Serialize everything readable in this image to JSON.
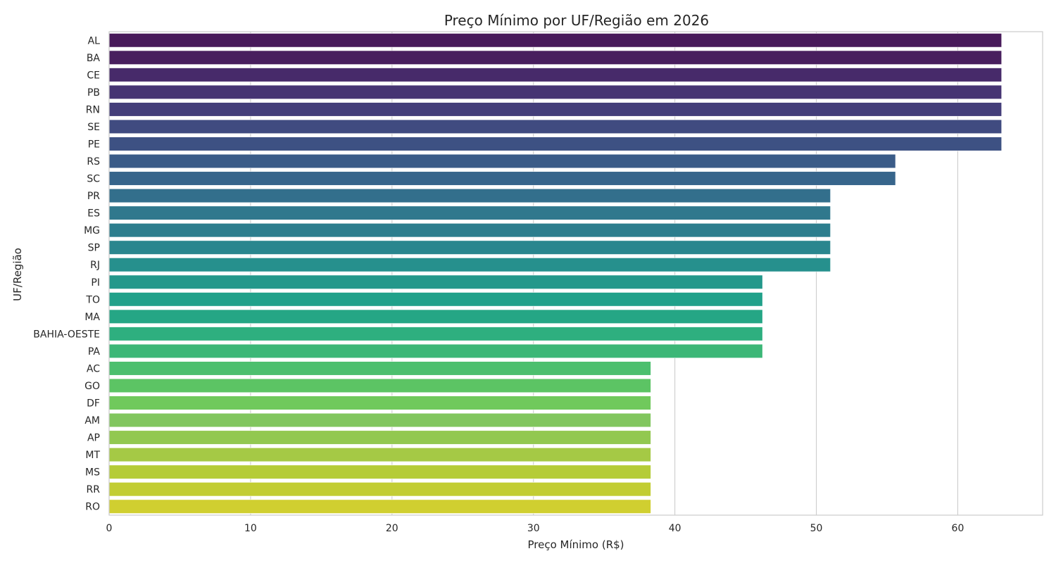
{
  "chart_data": {
    "type": "bar",
    "orientation": "horizontal",
    "title": "Preço Mínimo por UF/Região em 2026",
    "xlabel": "Preço Mínimo (R$)",
    "ylabel": "UF/Região",
    "xlim": [
      0,
      66
    ],
    "xticks": [
      "0",
      "10",
      "20",
      "30",
      "40",
      "50",
      "60"
    ],
    "grid": true,
    "categories": [
      "AL",
      "BA",
      "CE",
      "PB",
      "RN",
      "SE",
      "PE",
      "RS",
      "SC",
      "PR",
      "ES",
      "MG",
      "SP",
      "RJ",
      "PI",
      "TO",
      "MA",
      "BAHIA-OESTE",
      "PA",
      "AC",
      "GO",
      "DF",
      "AM",
      "AP",
      "MT",
      "MS",
      "RR",
      "RO"
    ],
    "values": [
      63.1,
      63.1,
      63.1,
      63.1,
      63.1,
      63.1,
      63.1,
      55.6,
      55.6,
      51.0,
      51.0,
      51.0,
      51.0,
      51.0,
      46.2,
      46.2,
      46.2,
      46.2,
      46.2,
      38.3,
      38.3,
      38.3,
      38.3,
      38.3,
      38.3,
      38.3,
      38.3,
      38.3
    ],
    "colors": [
      "#481a5a",
      "#481f5e",
      "#472a6a",
      "#463473",
      "#443e7a",
      "#404b80",
      "#3d5183",
      "#3b5c88",
      "#37658b",
      "#336f8c",
      "#30788d",
      "#2d7e8e",
      "#2a868e",
      "#26908d",
      "#24988b",
      "#21a18a",
      "#25a685",
      "#2eaf7f",
      "#3cb777",
      "#4cbf6e",
      "#5cc464",
      "#70c95c",
      "#81c65e",
      "#92c850",
      "#a5c945",
      "#b5cc37",
      "#c2cd33",
      "#d0cf30"
    ]
  }
}
